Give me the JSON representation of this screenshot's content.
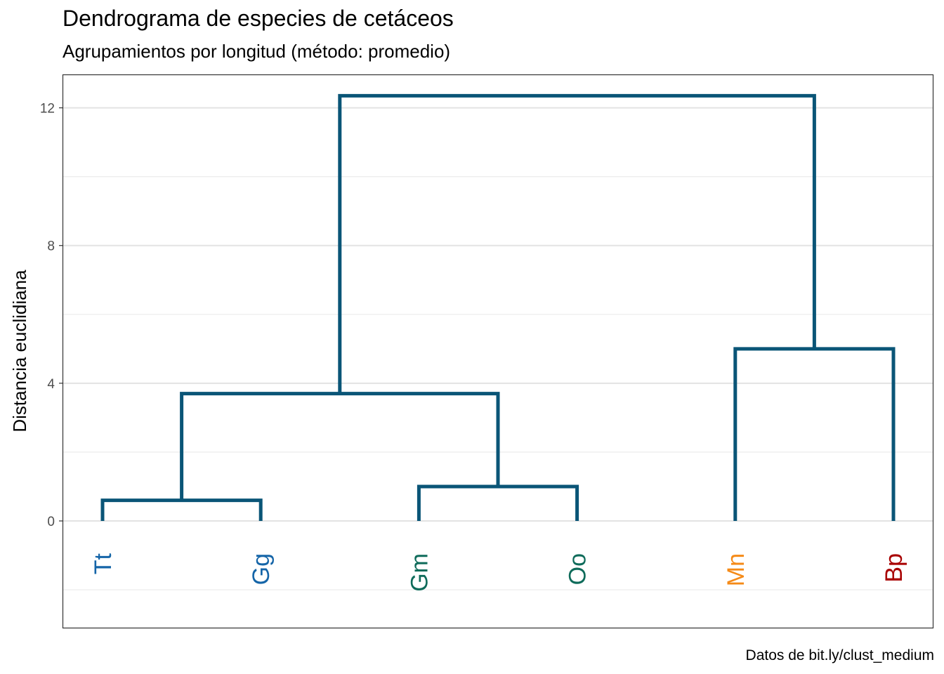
{
  "chart_data": {
    "type": "dendrogram",
    "title": "Dendrograma de especies de cetáceos",
    "subtitle": "Agrupamientos por longitud (método: promedio)",
    "ylabel": "Distancia euclidiana",
    "caption": "Datos de bit.ly/clust_medium",
    "ylim": [
      -3.1,
      12.95
    ],
    "yticks": [
      0,
      4,
      8,
      12
    ],
    "ytick_labels": [
      "0",
      "4",
      "8",
      "12"
    ],
    "minor_gridlines": [
      -2,
      2,
      6,
      10
    ],
    "grid": true,
    "leaves": [
      {
        "label": "Tt",
        "color": "#1565a8"
      },
      {
        "label": "Gg",
        "color": "#1565a8"
      },
      {
        "label": "Gm",
        "color": "#0e6b5a"
      },
      {
        "label": "Oo",
        "color": "#0e6b5a"
      },
      {
        "label": "Mn",
        "color": "#f58a17"
      },
      {
        "label": "Bp",
        "color": "#a80000"
      }
    ],
    "merges": [
      {
        "left": 0,
        "right": 1,
        "height": 0.6
      },
      {
        "left": 2,
        "right": 3,
        "height": 1.0
      },
      {
        "left": 6,
        "right": 7,
        "height": 3.7
      },
      {
        "left": 4,
        "right": 5,
        "height": 5.0
      },
      {
        "left": 8,
        "right": 9,
        "height": 12.35
      }
    ],
    "branch_color": "#0a5577"
  }
}
